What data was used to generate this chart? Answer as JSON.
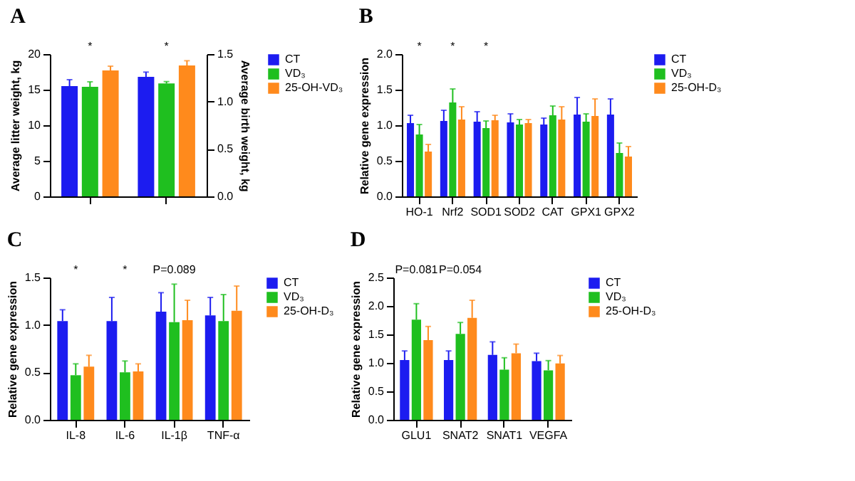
{
  "chart_data": [
    {
      "type": "bar",
      "title": "A",
      "ylabel": "Average litter weight, kg",
      "y2label": "Average birth weight, kg",
      "categories": [
        null,
        null
      ],
      "ylim": [
        0,
        20
      ],
      "yticks": [
        0,
        5,
        10,
        15,
        20
      ],
      "y2lim": [
        0,
        1.5
      ],
      "y2ticks": [
        {
          "value": 0,
          "label": "0.0"
        },
        0.5,
        {
          "value": 1,
          "label": "1.0"
        },
        1.5
      ],
      "legend": "right",
      "annotations": [
        "*",
        "*"
      ],
      "series": [
        {
          "name": "CT",
          "color": "#1c1cf0",
          "values": [
            15.5,
            null
          ],
          "errors": [
            [
              15.5,
              16.4
            ],
            null
          ]
        },
        {
          "name": "VD₃",
          "color": "#1fbf1f",
          "values": [
            15.4,
            null
          ],
          "errors": [
            [
              15.4,
              16.1
            ],
            null
          ]
        },
        {
          "name": "25-OH-VD₃",
          "color": "#ff8a1c",
          "values": [
            17.7,
            null
          ],
          "errors": [
            [
              17.7,
              18.3
            ],
            null
          ]
        },
        {
          "color": "#1c1cf0",
          "axis": "y2",
          "values": [
            null,
            1.26
          ],
          "errors": [
            null,
            [
              1.26,
              1.31
            ]
          ]
        },
        {
          "color": "#1fbf1f",
          "axis": "y2",
          "values": [
            null,
            1.19
          ],
          "errors": [
            null,
            [
              1.19,
              1.21
            ]
          ]
        },
        {
          "color": "#ff8a1c",
          "axis": "y2",
          "values": [
            null,
            1.38
          ],
          "errors": [
            null,
            [
              1.38,
              1.43
            ]
          ]
        }
      ]
    },
    {
      "type": "bar",
      "title": "B",
      "ylabel": "Relative gene expression",
      "categories": [
        "HO-1",
        "Nrf2",
        "SOD1",
        "SOD2",
        "CAT",
        "GPX1",
        "GPX2"
      ],
      "ylim": [
        0,
        2
      ],
      "yticks": [
        {
          "value": 0,
          "label": "0.0"
        },
        0.5,
        {
          "value": 1,
          "label": "1.0"
        },
        1.5,
        {
          "value": 2,
          "label": "2.0"
        }
      ],
      "legend": "right",
      "annotations": [
        "*",
        "*",
        "*"
      ],
      "series": [
        {
          "name": "CT",
          "color": "#1c1cf0",
          "values": [
            1.03,
            1.06,
            1.05,
            1.04,
            1.01,
            1.15,
            1.15
          ],
          "errors": [
            [
              1.03,
              1.14
            ],
            [
              1.06,
              1.21
            ],
            [
              1.05,
              1.19
            ],
            [
              1.04,
              1.16
            ],
            [
              1.01,
              1.1
            ],
            [
              1.15,
              1.39
            ],
            [
              1.15,
              1.37
            ]
          ]
        },
        {
          "name": "VD₃",
          "color": "#1fbf1f",
          "values": [
            0.87,
            1.32,
            0.96,
            1.01,
            1.14,
            1.05,
            0.61
          ],
          "errors": [
            [
              0.87,
              1.01
            ],
            [
              1.32,
              1.51
            ],
            [
              0.96,
              1.06
            ],
            [
              1.01,
              1.08
            ],
            [
              1.14,
              1.27
            ],
            [
              1.05,
              1.16
            ],
            [
              0.61,
              0.75
            ]
          ]
        },
        {
          "name": "25-OH-D₃",
          "color": "#ff8a1c",
          "values": [
            0.63,
            1.08,
            1.07,
            1.03,
            1.08,
            1.13,
            0.56
          ],
          "errors": [
            [
              0.63,
              0.73
            ],
            [
              1.08,
              1.26
            ],
            [
              1.07,
              1.14
            ],
            [
              1.03,
              1.08
            ],
            [
              1.08,
              1.26
            ],
            [
              1.13,
              1.37
            ],
            [
              0.56,
              0.7
            ]
          ]
        }
      ]
    },
    {
      "type": "bar",
      "title": "C",
      "ylabel": "Relative gene expression",
      "categories": [
        "IL-8",
        "IL-6",
        "IL-1β",
        "TNF-α"
      ],
      "ylim": [
        0,
        1.5
      ],
      "yticks": [
        {
          "value": 0,
          "label": "0.0"
        },
        0.5,
        {
          "value": 1,
          "label": "1.0"
        },
        1.5
      ],
      "legend": "right",
      "annotations": [
        "*",
        "*",
        "P=0.089"
      ],
      "series": [
        {
          "name": "CT",
          "color": "#1c1cf0",
          "values": [
            1.04,
            1.04,
            1.14,
            1.1
          ],
          "errors": [
            [
              1.04,
              1.16
            ],
            [
              1.04,
              1.29
            ],
            [
              1.14,
              1.34
            ],
            [
              1.1,
              1.29
            ]
          ]
        },
        {
          "name": "VD₃",
          "color": "#1fbf1f",
          "values": [
            0.47,
            0.5,
            1.03,
            1.04
          ],
          "errors": [
            [
              0.47,
              0.59
            ],
            [
              0.5,
              0.62
            ],
            [
              1.03,
              1.43
            ],
            [
              1.04,
              1.32
            ]
          ]
        },
        {
          "name": "25-OH-D₃",
          "color": "#ff8a1c",
          "values": [
            0.56,
            0.51,
            1.05,
            1.15
          ],
          "errors": [
            [
              0.56,
              0.68
            ],
            [
              0.51,
              0.59
            ],
            [
              1.05,
              1.26
            ],
            [
              1.15,
              1.41
            ]
          ]
        }
      ]
    },
    {
      "type": "bar",
      "title": "D",
      "ylabel": "Relative gene expression",
      "categories": [
        "GLU1",
        "SNAT2",
        "SNAT1",
        "VEGFA"
      ],
      "ylim": [
        0,
        2.5
      ],
      "yticks": [
        {
          "value": 0,
          "label": "0.0"
        },
        0.5,
        {
          "value": 1,
          "label": "1.0"
        },
        1.5,
        {
          "value": 2,
          "label": "2.0"
        },
        2.5
      ],
      "legend": "right",
      "annotations": [
        "P=0.081",
        "P=0.054"
      ],
      "series": [
        {
          "name": "CT",
          "color": "#1c1cf0",
          "values": [
            1.05,
            1.05,
            1.14,
            1.03
          ],
          "errors": [
            [
              1.05,
              1.21
            ],
            [
              1.05,
              1.21
            ],
            [
              1.14,
              1.37
            ],
            [
              1.03,
              1.17
            ]
          ]
        },
        {
          "name": "VD₃",
          "color": "#1fbf1f",
          "values": [
            1.76,
            1.51,
            0.88,
            0.87
          ],
          "errors": [
            [
              1.76,
              2.04
            ],
            [
              1.51,
              1.71
            ],
            [
              0.88,
              1.09
            ],
            [
              0.87,
              1.04
            ]
          ]
        },
        {
          "name": "25-OH-D₃",
          "color": "#ff8a1c",
          "values": [
            1.4,
            1.79,
            1.17,
            0.99
          ],
          "errors": [
            [
              1.4,
              1.64
            ],
            [
              1.79,
              2.1
            ],
            [
              1.17,
              1.33
            ],
            [
              0.99,
              1.13
            ]
          ]
        }
      ]
    }
  ]
}
